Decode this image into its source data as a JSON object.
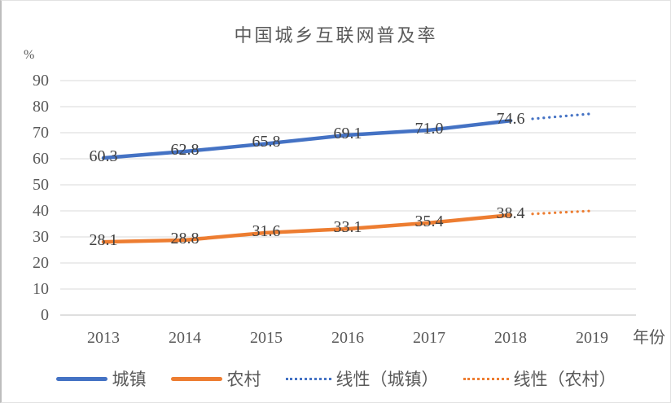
{
  "colors": {
    "urban_blue": "#4472C4",
    "rural_orange": "#ED7D31",
    "gridline": "#D9D9D9",
    "axis_line": "#BFBFBF",
    "axis_text": "#595959",
    "data_label_text": "#404040"
  },
  "chart_data": {
    "type": "line",
    "title": "中国城乡互联网普及率",
    "y_unit_label": "%",
    "x_axis_label": "年份",
    "categories": [
      "2013",
      "2014",
      "2015",
      "2016",
      "2017",
      "2018",
      "2019"
    ],
    "y_ticks": [
      90,
      80,
      70,
      60,
      50,
      40,
      30,
      20,
      10,
      0
    ],
    "ylim": [
      0,
      90
    ],
    "grid": "horizontal",
    "legend_position": "bottom",
    "series": [
      {
        "name": "城镇",
        "color_key": "urban_blue",
        "values": [
          60.3,
          62.8,
          65.8,
          69.1,
          71.0,
          74.6
        ],
        "labels": [
          "60.3",
          "62.8",
          "65.8",
          "69.1",
          "71.0",
          "74.6"
        ]
      },
      {
        "name": "农村",
        "color_key": "rural_orange",
        "values": [
          28.1,
          28.8,
          31.6,
          33.1,
          35.4,
          38.4
        ],
        "labels": [
          "28.1",
          "28.8",
          "31.6",
          "33.1",
          "35.4",
          "38.4"
        ]
      }
    ],
    "trendlines": [
      {
        "name": "线性（城镇）",
        "color_key": "urban_blue",
        "style": "dotted",
        "from_category": "2018",
        "from_value": 74.6,
        "to_category": "2019",
        "to_value": 77.3
      },
      {
        "name": "线性（农村）",
        "color_key": "rural_orange",
        "style": "dotted",
        "from_category": "2018",
        "from_value": 38.4,
        "to_category": "2019",
        "to_value": 40.0
      }
    ],
    "legend": [
      {
        "label": "城镇",
        "swatch": "solid",
        "color_key": "urban_blue"
      },
      {
        "label": "农村",
        "swatch": "solid",
        "color_key": "rural_orange"
      },
      {
        "label": "线性（城镇）",
        "swatch": "dotted",
        "color_key": "urban_blue"
      },
      {
        "label": "线性（农村）",
        "swatch": "dotted",
        "color_key": "rural_orange"
      }
    ]
  }
}
